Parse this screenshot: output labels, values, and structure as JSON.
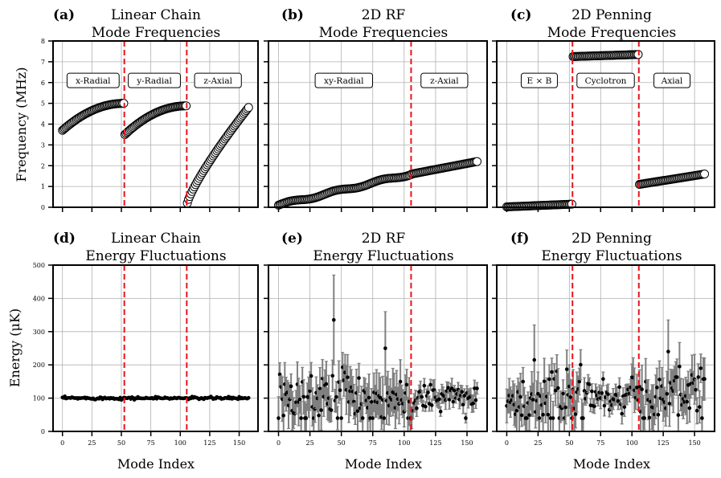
{
  "colors": {
    "divider": "#e8141c",
    "grid": "#b0b0b0",
    "errorbar": "#808080",
    "marker_face": "#ffffff",
    "marker_edge": "#000000"
  },
  "chart_data": [
    {
      "id": "a",
      "panel_label": "(a)",
      "type": "scatter",
      "title_line1": "Linear Chain",
      "title_line2": "Mode Frequencies",
      "ylabel": "Frequency (MHz)",
      "ylim": [
        0,
        8
      ],
      "xlim": [
        -8,
        166
      ],
      "yticks": [
        "0",
        "1",
        "2",
        "3",
        "4",
        "5",
        "6",
        "7",
        "8"
      ],
      "dividers": [
        52.5,
        105.5
      ],
      "regions": [
        {
          "label": "x-Radial",
          "x": 26
        },
        {
          "label": "y-Radial",
          "x": 78
        },
        {
          "label": "z-Axial",
          "x": 132
        }
      ],
      "series": [
        {
          "name": "x-Radial",
          "x_range": [
            0,
            52
          ],
          "y_start": 3.7,
          "y_end": 5.0,
          "shape": "sqrt"
        },
        {
          "name": "y-Radial",
          "x_range": [
            53,
            105
          ],
          "y_start": 3.5,
          "y_end": 4.88,
          "shape": "sqrt"
        },
        {
          "name": "z-Axial",
          "x_range": [
            106,
            158
          ],
          "y_start": 0.2,
          "y_end": 4.8,
          "shape": "concave"
        }
      ]
    },
    {
      "id": "b",
      "panel_label": "(b)",
      "type": "scatter",
      "title_line1": "2D RF",
      "title_line2": "Mode Frequencies",
      "ylim": [
        0,
        8
      ],
      "xlim": [
        -8,
        166
      ],
      "dividers": [
        105.5
      ],
      "regions": [
        {
          "label": "xy-Radial",
          "x": 52
        },
        {
          "label": "z-Axial",
          "x": 132
        }
      ],
      "series": [
        {
          "name": "xy-Radial",
          "x_range": [
            0,
            105
          ],
          "y_start": 0.1,
          "y_end": 1.6,
          "shape": "wavy"
        },
        {
          "name": "z-Axial",
          "x_range": [
            106,
            158
          ],
          "y_start": 1.6,
          "y_end": 2.2,
          "shape": "linear"
        }
      ]
    },
    {
      "id": "c",
      "panel_label": "(c)",
      "type": "scatter",
      "title_line1": "2D Penning",
      "title_line2": "Mode Frequencies",
      "ylim": [
        0,
        8
      ],
      "xlim": [
        -8,
        166
      ],
      "dividers": [
        52.5,
        105.5
      ],
      "regions": [
        {
          "label": "E × B",
          "x": 26
        },
        {
          "label": "Cyclotron",
          "x": 79
        },
        {
          "label": "Axial",
          "x": 132
        }
      ],
      "series": [
        {
          "name": "ExB",
          "x_range": [
            0,
            52
          ],
          "y_start": 0.02,
          "y_end": 0.15,
          "shape": "linear"
        },
        {
          "name": "Cyclotron",
          "x_range": [
            53,
            105
          ],
          "y_start": 7.25,
          "y_end": 7.35,
          "shape": "linear"
        },
        {
          "name": "Axial",
          "x_range": [
            106,
            158
          ],
          "y_start": 1.1,
          "y_end": 1.6,
          "shape": "linear"
        }
      ]
    },
    {
      "id": "d",
      "panel_label": "(d)",
      "type": "scatter",
      "title_line1": "Linear Chain",
      "title_line2": "Energy Fluctuations",
      "ylabel": "Energy (μK)",
      "xlabel": "Mode Index",
      "ylim": [
        0,
        500
      ],
      "xlim": [
        -8,
        166
      ],
      "yticks": [
        "0",
        "100",
        "200",
        "300",
        "400",
        "500"
      ],
      "xticks": [
        "0",
        "25",
        "50",
        "75",
        "100",
        "125",
        "150"
      ],
      "dividers": [
        52.5,
        105.5
      ],
      "mean": 100,
      "spread": 2,
      "errorbars": false
    },
    {
      "id": "e",
      "panel_label": "(e)",
      "type": "scatter",
      "title_line1": "2D RF",
      "title_line2": "Energy Fluctuations",
      "xlabel": "Mode Index",
      "ylim": [
        0,
        500
      ],
      "xlim": [
        -8,
        166
      ],
      "xticks": [
        "0",
        "25",
        "50",
        "75",
        "100",
        "125",
        "150"
      ],
      "dividers": [
        105.5
      ],
      "mean": 100,
      "errorbars": true,
      "notable_points": [
        {
          "x": 44,
          "y": 335,
          "err": 135
        },
        {
          "x": 85,
          "y": 250,
          "err": 110
        }
      ]
    },
    {
      "id": "f",
      "panel_label": "(f)",
      "type": "scatter",
      "title_line1": "2D Penning",
      "title_line2": "Energy Fluctuations",
      "xlabel": "Mode Index",
      "ylim": [
        0,
        500
      ],
      "xlim": [
        -8,
        166
      ],
      "xticks": [
        "0",
        "25",
        "50",
        "75",
        "100",
        "125",
        "150"
      ],
      "dividers": [
        52.5,
        105.5
      ],
      "mean": 100,
      "errorbars": true,
      "notable_points": [
        {
          "x": 22,
          "y": 215,
          "err": 105
        },
        {
          "x": 129,
          "y": 240,
          "err": 95
        }
      ]
    }
  ]
}
